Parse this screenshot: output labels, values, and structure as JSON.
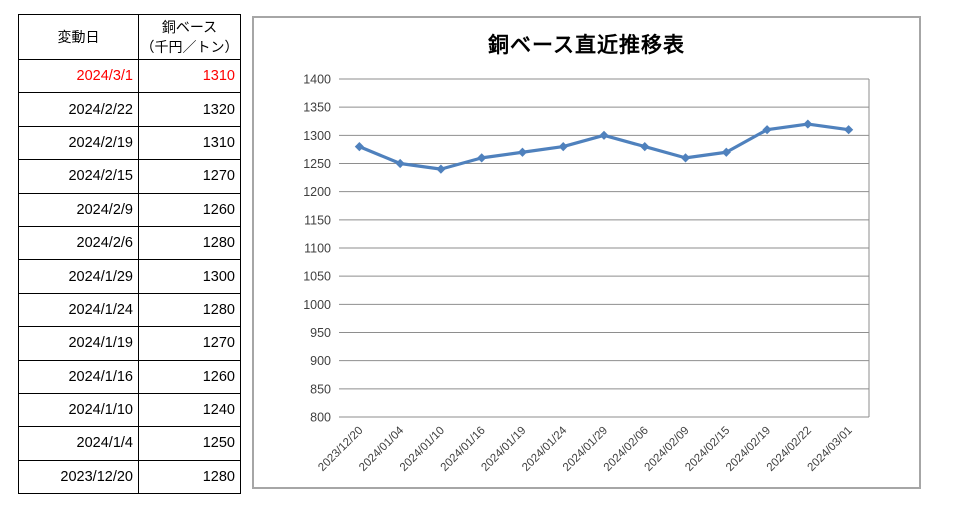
{
  "table": {
    "header": {
      "date_col": "変動日",
      "value_col": "銅ベース\n（千円／トン）"
    },
    "rows": [
      {
        "date": "2024/3/1",
        "value": "1310",
        "highlight": true
      },
      {
        "date": "2024/2/22",
        "value": "1320",
        "highlight": false
      },
      {
        "date": "2024/2/19",
        "value": "1310",
        "highlight": false
      },
      {
        "date": "2024/2/15",
        "value": "1270",
        "highlight": false
      },
      {
        "date": "2024/2/9",
        "value": "1260",
        "highlight": false
      },
      {
        "date": "2024/2/6",
        "value": "1280",
        "highlight": false
      },
      {
        "date": "2024/1/29",
        "value": "1300",
        "highlight": false
      },
      {
        "date": "2024/1/24",
        "value": "1280",
        "highlight": false
      },
      {
        "date": "2024/1/19",
        "value": "1270",
        "highlight": false
      },
      {
        "date": "2024/1/16",
        "value": "1260",
        "highlight": false
      },
      {
        "date": "2024/1/10",
        "value": "1240",
        "highlight": false
      },
      {
        "date": "2024/1/4",
        "value": "1250",
        "highlight": false
      },
      {
        "date": "2023/12/20",
        "value": "1280",
        "highlight": false
      }
    ],
    "highlight_color": "#FF0000",
    "text_color": "#000000",
    "border_color": "#000000"
  },
  "chart_data": {
    "type": "line",
    "title": "銅ベース直近推移表",
    "categories": [
      "2023/12/20",
      "2024/01/04",
      "2024/01/10",
      "2024/01/16",
      "2024/01/19",
      "2024/01/24",
      "2024/01/29",
      "2024/02/06",
      "2024/02/09",
      "2024/02/15",
      "2024/02/19",
      "2024/02/22",
      "2024/03/01"
    ],
    "values": [
      1280,
      1250,
      1240,
      1260,
      1270,
      1280,
      1300,
      1280,
      1260,
      1270,
      1310,
      1320,
      1310
    ],
    "xlabel": "",
    "ylabel": "",
    "ylim": [
      800,
      1400
    ],
    "ytick_step": 50,
    "grid": "horizontal",
    "legend": "none",
    "series_color": "#4F81BD",
    "grid_color": "#8E8E8E",
    "tick_label_color": "#3F3F3F",
    "frame_color": "#A6A6A6",
    "marker": "diamond"
  }
}
